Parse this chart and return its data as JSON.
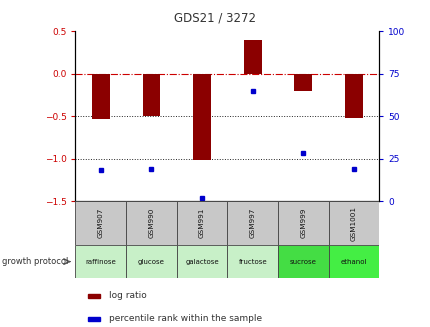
{
  "title": "GDS21 / 3272",
  "samples": [
    "GSM907",
    "GSM990",
    "GSM991",
    "GSM997",
    "GSM999",
    "GSM1001"
  ],
  "protocols": [
    "raffinose",
    "glucose",
    "galactose",
    "fructose",
    "sucrose",
    "ethanol"
  ],
  "log_ratio": [
    -0.53,
    -0.5,
    -1.02,
    0.4,
    -0.2,
    -0.52
  ],
  "percentile_rank": [
    18,
    19,
    2,
    65,
    28,
    19
  ],
  "bar_color": "#8B0000",
  "dot_color": "#0000CC",
  "ylim": [
    -1.5,
    0.5
  ],
  "y2lim": [
    0,
    100
  ],
  "yticks": [
    -1.5,
    -1.0,
    -0.5,
    0.0,
    0.5
  ],
  "y2ticks": [
    0,
    25,
    50,
    75,
    100
  ],
  "hline_zero_color": "#cc0000",
  "hline_dot_color": "#222222",
  "sample_bg": "#c8c8c8",
  "protocol_bg_colors": [
    "#c8f0c8",
    "#c8f0c8",
    "#c8f0c8",
    "#c8f0c8",
    "#44dd44",
    "#44ee44"
  ],
  "legend_log_ratio_label": "log ratio",
  "legend_percentile_label": "percentile rank within the sample",
  "growth_protocol_label": "growth protocol",
  "title_color": "#333333",
  "left_tick_color": "#cc0000",
  "right_tick_color": "#0000cc"
}
